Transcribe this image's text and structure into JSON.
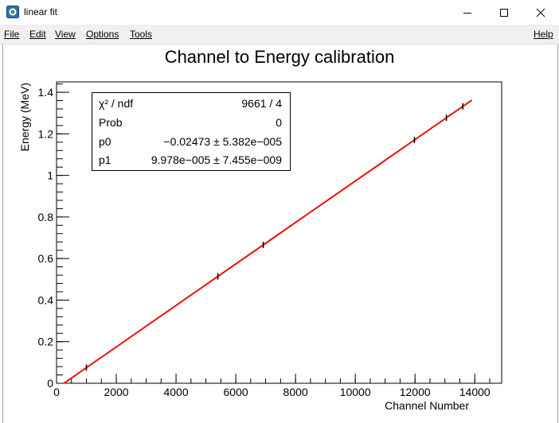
{
  "window": {
    "title": "linear fit",
    "controls": [
      "minimize",
      "maximize",
      "close"
    ]
  },
  "menu": {
    "left": [
      "File",
      "Edit",
      "View",
      "Options",
      "Tools"
    ],
    "right": "Help"
  },
  "stats_box": {
    "rows": [
      {
        "name": "χ² / ndf",
        "value": "9661 / 4"
      },
      {
        "name": "Prob",
        "value": "0"
      },
      {
        "name": "p0",
        "value": "−0.02473 ± 5.382e−005"
      },
      {
        "name": "p1",
        "value": "9.978e−005 ± 7.455e−009"
      }
    ]
  },
  "chart_data": {
    "type": "scatter",
    "title": "Channel to Energy calibration",
    "xlabel": "Channel Number",
    "ylabel": "Energy (MeV)",
    "xlim": [
      0,
      14900
    ],
    "ylim": [
      0,
      1.45
    ],
    "xticks": [
      0,
      2000,
      4000,
      6000,
      8000,
      10000,
      12000,
      14000
    ],
    "xtick_labels": [
      "0",
      "2000",
      "4000",
      "6000",
      "8000",
      "10000",
      "12000",
      "14000"
    ],
    "yticks": [
      0,
      0.2,
      0.4,
      0.6,
      0.8,
      1.0,
      1.2,
      1.4
    ],
    "ytick_labels": [
      "0",
      "0.2",
      "0.4",
      "0.6",
      "0.8",
      "1",
      "1.2",
      "1.4"
    ],
    "grid": false,
    "points": [
      {
        "x": 1000,
        "y": 0.0751
      },
      {
        "x": 5400,
        "y": 0.5141
      },
      {
        "x": 6920,
        "y": 0.6657
      },
      {
        "x": 11980,
        "y": 1.1706
      },
      {
        "x": 13050,
        "y": 1.2774
      },
      {
        "x": 13600,
        "y": 1.3322
      }
    ],
    "fit": {
      "type": "linear",
      "p0": -0.02473,
      "p1": 9.978e-05,
      "x_range": [
        250,
        13900
      ],
      "color": "#e8120a"
    },
    "marker_color": "#000000"
  }
}
